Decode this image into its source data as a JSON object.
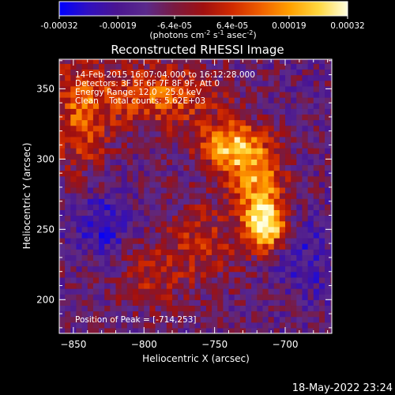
{
  "colorbar": {
    "tick_labels": [
      "-0.00032",
      "-0.00019",
      "-6.4e-05",
      "6.4e-05",
      "0.00019",
      "0.00032"
    ],
    "tick_values": [
      -0.00032,
      -0.00019,
      -6.4e-05,
      6.4e-05,
      0.00019,
      0.00032
    ],
    "range": [
      -0.00032,
      0.00032
    ],
    "unit_pre": "(photons cm",
    "unit_sup1": "-2",
    "unit_mid": " s",
    "unit_sup2": "-1",
    "unit_mid2": " asec",
    "unit_sup3": "-2",
    "unit_post": ")",
    "colors": [
      "#0000ff",
      "#3010c0",
      "#4a1590",
      "#5a2a8c",
      "#7a1a40",
      "#a01010",
      "#d02a00",
      "#f06000",
      "#ffa000",
      "#ffd840",
      "#ffffe0"
    ]
  },
  "chart_data": {
    "type": "heatmap",
    "title": "Reconstructed RHESSI Image",
    "xlabel": "Heliocentric X (arcsec)",
    "ylabel": "Heliocentric Y (arcsec)",
    "xlim": [
      -860,
      -667
    ],
    "ylim": [
      176,
      371
    ],
    "xticks": [
      -850,
      -800,
      -750,
      -700
    ],
    "xtick_labels": [
      "−850",
      "−800",
      "−750",
      "−700"
    ],
    "yticks": [
      200,
      250,
      300,
      350
    ],
    "ytick_labels": [
      "200",
      "250",
      "300",
      "350"
    ],
    "peak": [
      -714,
      253
    ],
    "annotations": [
      "14-Feb-2015 16:07:04.000 to 16:12:28.000",
      "Detectors: 3F 5F 6F 7F 8F 9F, Att 0",
      "Energy Range: 12.0 - 25.0 keV",
      "Clean    Total counts: 5.62E+03"
    ],
    "peak_label": "Position of Peak = [-714,253]",
    "grid": false
  },
  "footer": {
    "date": "18-May-2022 23:24"
  }
}
